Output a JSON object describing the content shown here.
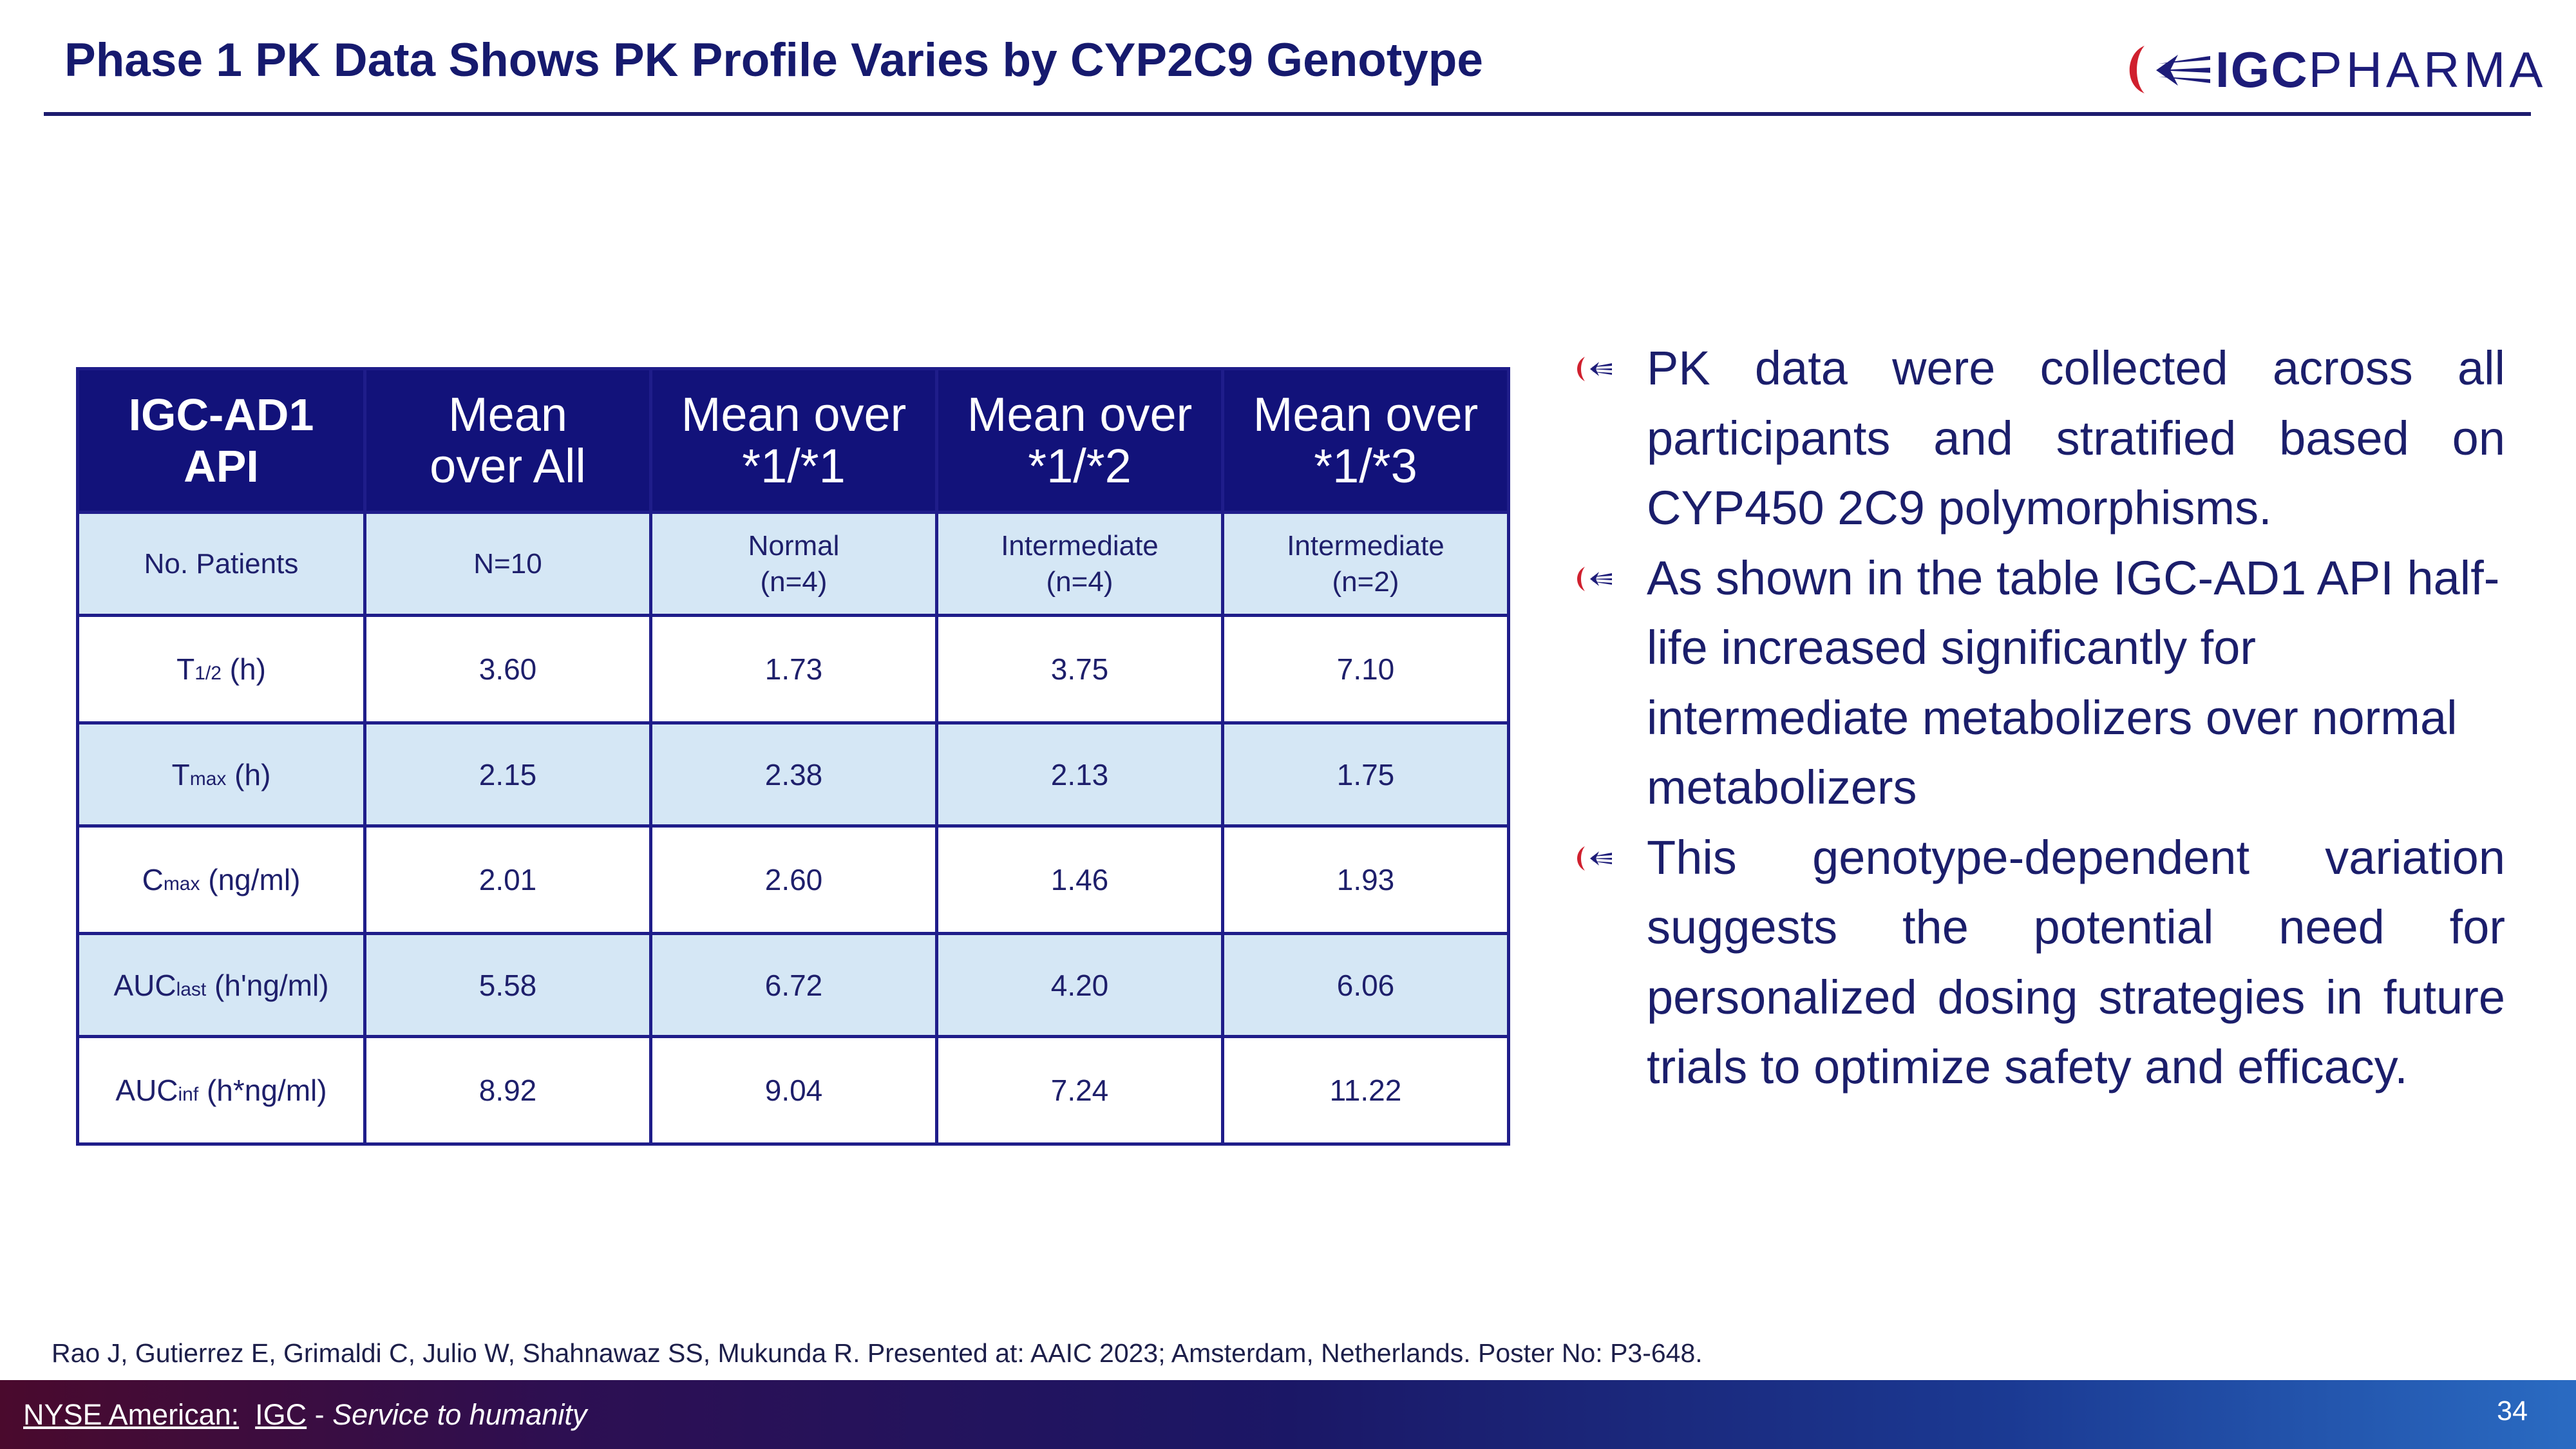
{
  "title": "Phase 1 PK Data Shows PK Profile Varies by CYP2C9 Genotype",
  "logo": {
    "strong": "IGC",
    "light": "PHARMA"
  },
  "table": {
    "headers": [
      {
        "line1": "IGC-AD1",
        "line2": "API"
      },
      {
        "line1": "Mean",
        "line2": "over All"
      },
      {
        "line1": "Mean over",
        "line2": "*1/*1"
      },
      {
        "line1": "Mean over",
        "line2": "*1/*2"
      },
      {
        "line1": "Mean over",
        "line2": "*1/*3"
      }
    ],
    "patients": {
      "label": "No. Patients",
      "all": "N=10",
      "c1": {
        "line1": "Normal",
        "line2": "(n=4)"
      },
      "c2": {
        "line1": "Intermediate",
        "line2": "(n=4)"
      },
      "c3": {
        "line1": "Intermediate",
        "line2": "(n=2)"
      }
    },
    "rows": [
      {
        "main": "T",
        "sub": "1/2",
        "unit": " (h)",
        "values": [
          "3.60",
          "1.73",
          "3.75",
          "7.10"
        ]
      },
      {
        "main": "T",
        "sub": "max",
        "unit": " (h)",
        "values": [
          "2.15",
          "2.38",
          "2.13",
          "1.75"
        ]
      },
      {
        "main": "C",
        "sub": "max",
        "unit": " (ng/ml)",
        "values": [
          "2.01",
          "2.60",
          "1.46",
          "1.93"
        ]
      },
      {
        "main": "AUC",
        "sub": "last",
        "unit": " (h'ng/ml)",
        "values": [
          "5.58",
          "6.72",
          "4.20",
          "6.06"
        ]
      },
      {
        "main": "AUC",
        "sub": "inf",
        "unit": " (h*ng/ml)",
        "values": [
          "8.92",
          "9.04",
          "7.24",
          "11.22"
        ]
      }
    ]
  },
  "bullets": [
    "PK data were  collected across all participants and stratified based on CYP450 2C9 polymorphisms.",
    "As shown in the table IGC-AD1 API half-life increased significantly for intermediate metabolizers over normal metabolizers",
    "This genotype-dependent variation suggests the potential need for personalized dosing strategies in future trials to optimize safety and efficacy."
  ],
  "citation": "Rao J, Gutierrez E, Grimaldi C, Julio W, Shahnawaz SS, Mukunda R. Presented at: AAIC 2023; Amsterdam, Netherlands. Poster No: P3-648.",
  "footer": {
    "exchange": "NYSE American:",
    "ticker": "IGC",
    "sep": " - ",
    "tagline": "Service to humanity",
    "page": "34"
  },
  "colors": {
    "title": "#161a6e",
    "header_bg": "#12127a",
    "row_highlight": "#d5e7f5",
    "border": "#1f1d8a",
    "logo_red": "#d0202e"
  }
}
